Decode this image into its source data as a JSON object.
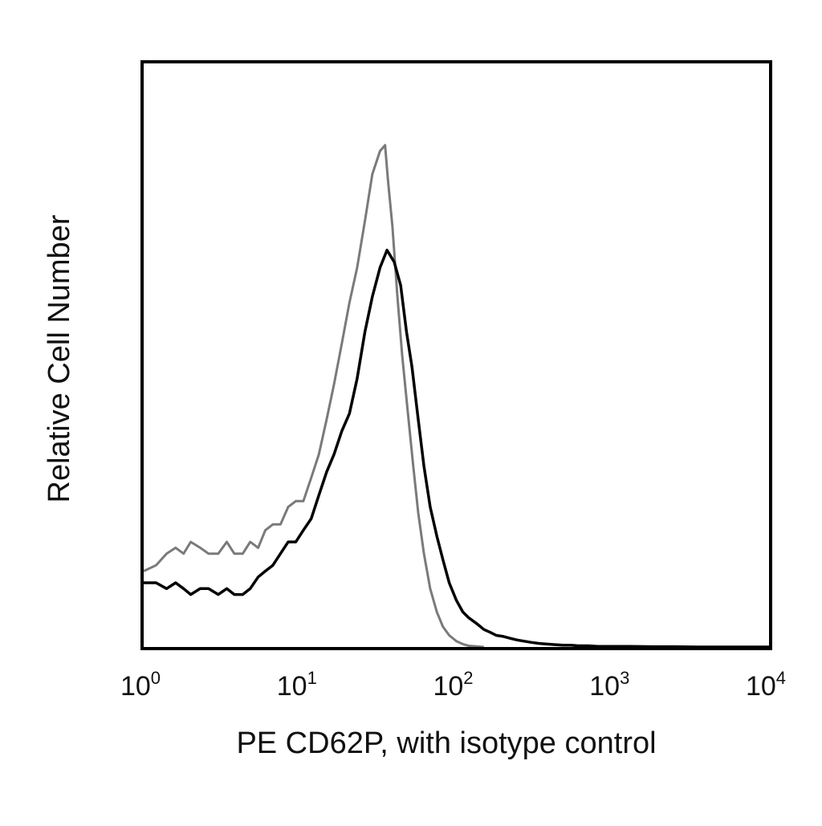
{
  "chart_data": {
    "type": "line",
    "title": "",
    "xlabel": "PE CD62P, with isotype control",
    "ylabel": "Relative Cell Number",
    "x_scale": "log",
    "xlim": [
      1,
      10000
    ],
    "ylim": [
      0,
      100
    ],
    "grid": false,
    "legend": "none",
    "x_ticks": [
      {
        "value": 1,
        "base": "10",
        "exp": "0"
      },
      {
        "value": 10,
        "base": "10",
        "exp": "1"
      },
      {
        "value": 100,
        "base": "10",
        "exp": "2"
      },
      {
        "value": 1000,
        "base": "10",
        "exp": "3"
      },
      {
        "value": 10000,
        "base": "10",
        "exp": "4"
      }
    ],
    "series": [
      {
        "color": "#7a7a7a",
        "x": [
          1,
          1.2,
          1.4,
          1.6,
          1.8,
          2,
          2.3,
          2.6,
          3,
          3.4,
          3.8,
          4.3,
          4.8,
          5.4,
          6,
          6.7,
          7.5,
          8.4,
          9.4,
          10.5,
          11.8,
          13.2,
          14.8,
          16.5,
          18.5,
          20.7,
          23.2,
          26,
          29,
          32.5,
          35,
          36.5,
          39,
          42,
          45,
          49,
          53,
          57,
          62,
          68,
          75,
          82,
          90,
          100,
          110,
          120,
          135,
          150
        ],
        "y": [
          13,
          14,
          16,
          17,
          16,
          18,
          17,
          16,
          16,
          18,
          16,
          16,
          18,
          17,
          20,
          21,
          21,
          24,
          25,
          25,
          29,
          33,
          39,
          45,
          52,
          59,
          65,
          73,
          81,
          85,
          86,
          80,
          72,
          60,
          50,
          40,
          31,
          23,
          16,
          10,
          6,
          3.5,
          2,
          1,
          0.5,
          0.2,
          0.1,
          0
        ]
      },
      {
        "color": "#000000",
        "x": [
          1,
          1.2,
          1.4,
          1.6,
          1.8,
          2,
          2.3,
          2.6,
          3,
          3.4,
          3.8,
          4.3,
          4.8,
          5.4,
          6,
          6.7,
          7.5,
          8.4,
          9.4,
          10.5,
          11.8,
          13.2,
          14.8,
          16.5,
          18.5,
          20.7,
          23.2,
          26,
          29,
          32.5,
          36,
          40,
          44,
          48,
          52,
          57,
          62,
          68,
          75,
          82,
          90,
          100,
          110,
          120,
          135,
          150,
          165,
          180,
          200,
          220,
          245,
          270,
          300,
          340,
          380,
          430,
          480,
          540,
          600,
          700,
          800,
          900,
          1000,
          1300,
          1800,
          2500,
          3500,
          5000,
          10000
        ],
        "y": [
          11,
          11,
          10,
          11,
          10,
          9,
          10,
          10,
          9,
          10,
          9,
          9,
          10,
          12,
          13,
          14,
          16,
          18,
          18,
          20,
          22,
          26,
          30,
          33,
          37,
          40,
          46,
          54,
          60,
          65,
          68,
          66,
          62,
          54,
          48,
          39,
          31,
          24,
          19,
          15,
          11,
          8,
          6,
          5,
          4,
          3,
          2.5,
          2,
          1.8,
          1.5,
          1.2,
          1,
          0.8,
          0.6,
          0.5,
          0.4,
          0.3,
          0.3,
          0.2,
          0.2,
          0.1,
          0.1,
          0.1,
          0.1,
          0.05,
          0.05,
          0,
          0,
          0
        ]
      }
    ]
  }
}
